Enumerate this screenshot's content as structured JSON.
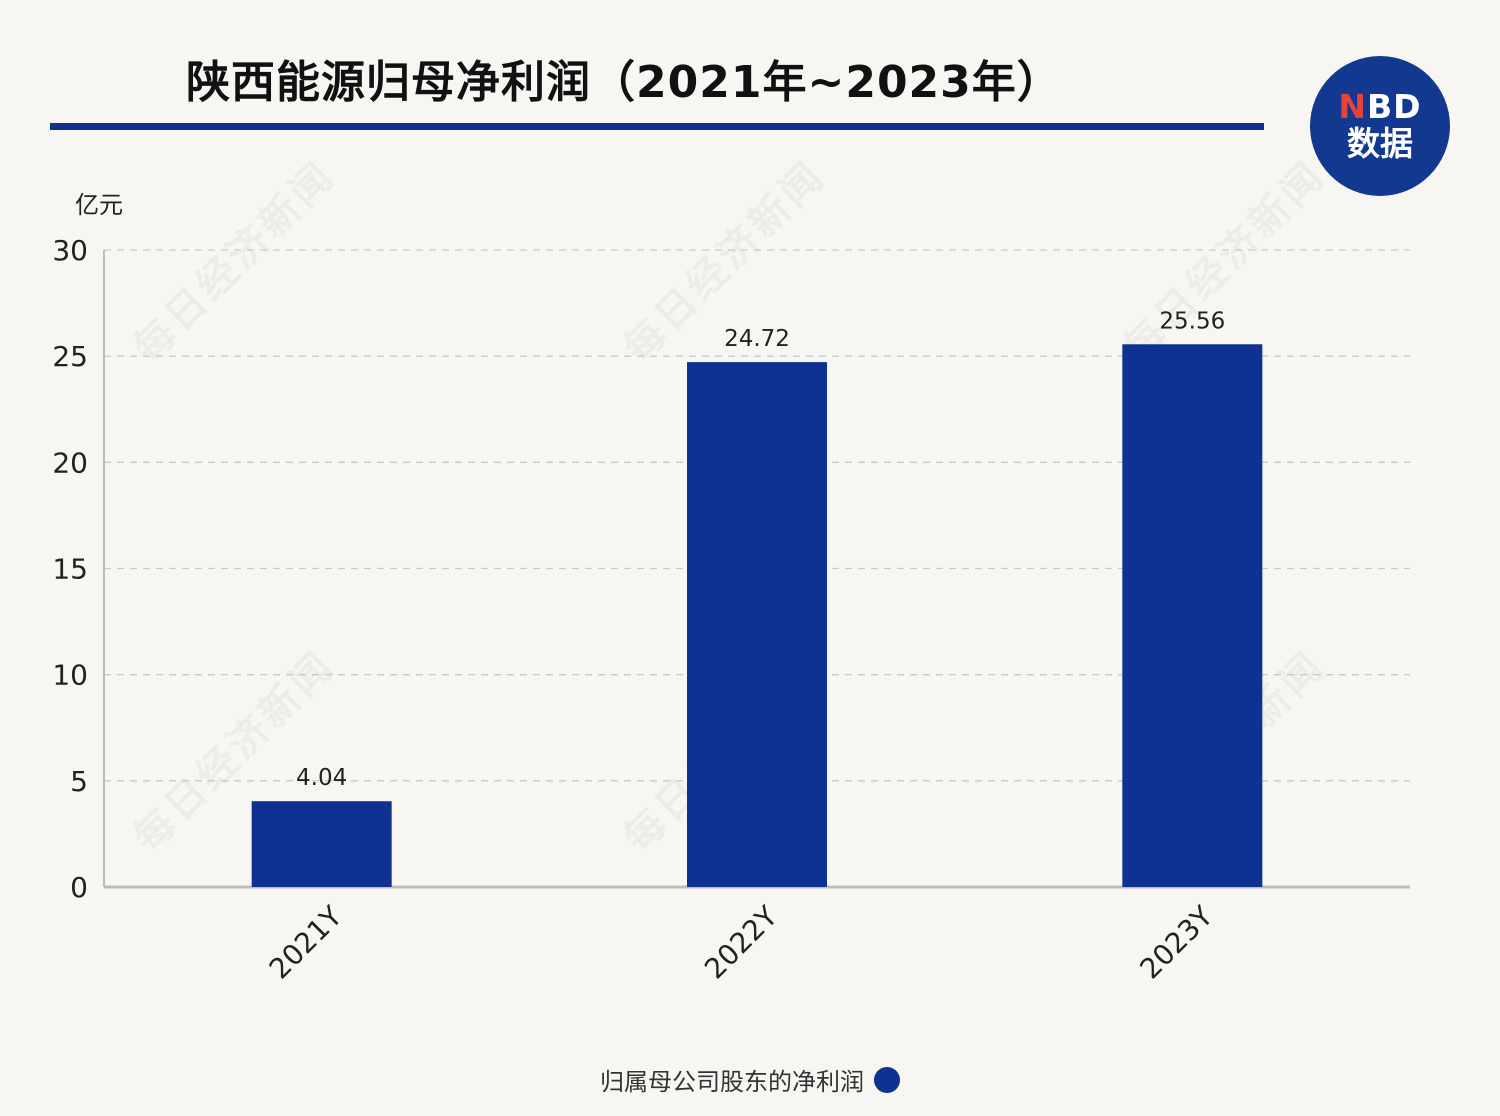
{
  "title": "陕西能源归母净利润（2021年~2023年）",
  "logo": {
    "line1_n": "N",
    "line1_rest": "BD",
    "line2": "数据"
  },
  "watermark": "每日经济新闻",
  "colors": {
    "bar": "#0e3192",
    "rule": "#0e3192",
    "grid": "#c9c9c9",
    "axis": "#bdbdbd"
  },
  "chart_data": {
    "type": "bar",
    "title": "陕西能源归母净利润（2021年~2023年）",
    "ylabel": "亿元",
    "xlabel": "",
    "ylim": [
      0,
      30
    ],
    "yticks": [
      0,
      5,
      10,
      15,
      20,
      25,
      30
    ],
    "categories": [
      "2021Y",
      "2022Y",
      "2023Y"
    ],
    "series": [
      {
        "name": "归属母公司股东的净利润",
        "values": [
          4.04,
          24.72,
          25.56
        ],
        "labels": [
          "4.04",
          "24.72",
          "25.56"
        ]
      }
    ],
    "grid": true,
    "legend": "bottom-center"
  }
}
